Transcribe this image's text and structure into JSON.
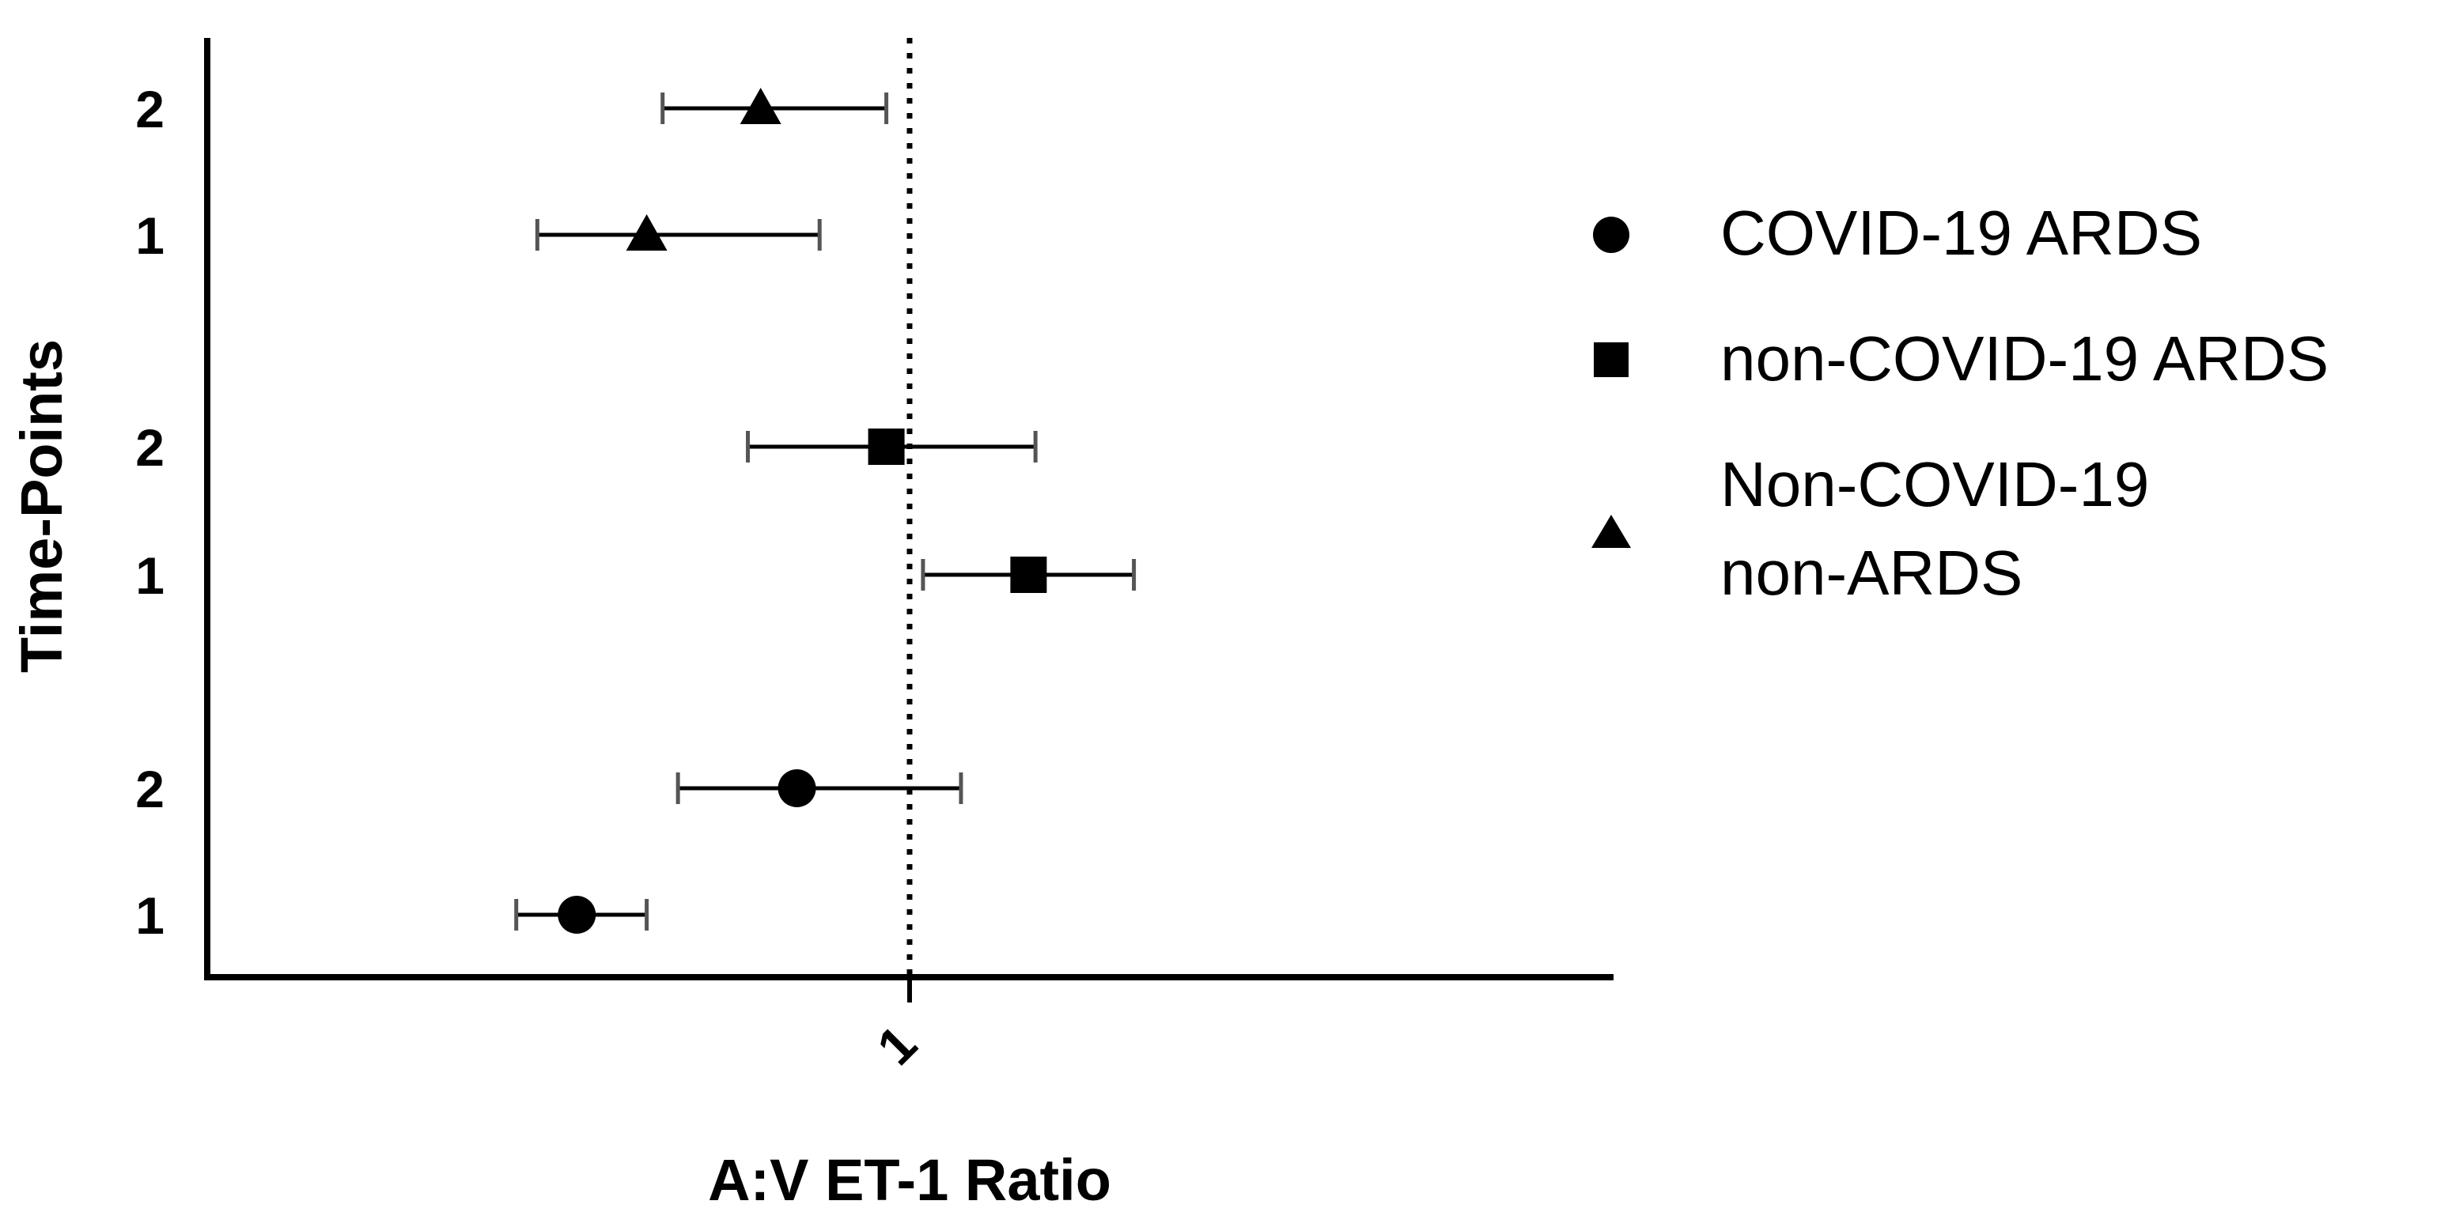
{
  "chart_data": {
    "type": "scatter",
    "xlabel": "A:V ET-1 Ratio",
    "ylabel": "Time-Points",
    "x_scale": "log",
    "x_ticks": [
      {
        "value": 1,
        "label": "1"
      }
    ],
    "reference_line": {
      "x": 1,
      "style": "dotted"
    },
    "legend_position": "right",
    "grid": false,
    "series": [
      {
        "name": "COVID-19 ARDS",
        "marker": "circle",
        "points": [
          {
            "timepoint": "1",
            "x": 0.48,
            "low": 0.42,
            "high": 0.56
          },
          {
            "timepoint": "2",
            "x": 0.78,
            "low": 0.6,
            "high": 1.12
          }
        ]
      },
      {
        "name": "non-COVID-19 ARDS",
        "marker": "square",
        "points": [
          {
            "timepoint": "1",
            "x": 1.3,
            "low": 1.03,
            "high": 1.64
          },
          {
            "timepoint": "2",
            "x": 0.95,
            "low": 0.7,
            "high": 1.32
          }
        ]
      },
      {
        "name": "Non-COVID-19 non-ARDS",
        "name_lines": [
          "Non-COVID-19",
          "non-ARDS"
        ],
        "marker": "triangle",
        "points": [
          {
            "timepoint": "1",
            "x": 0.56,
            "low": 0.44,
            "high": 0.82
          },
          {
            "timepoint": "2",
            "x": 0.72,
            "low": 0.58,
            "high": 0.95
          }
        ]
      }
    ]
  }
}
